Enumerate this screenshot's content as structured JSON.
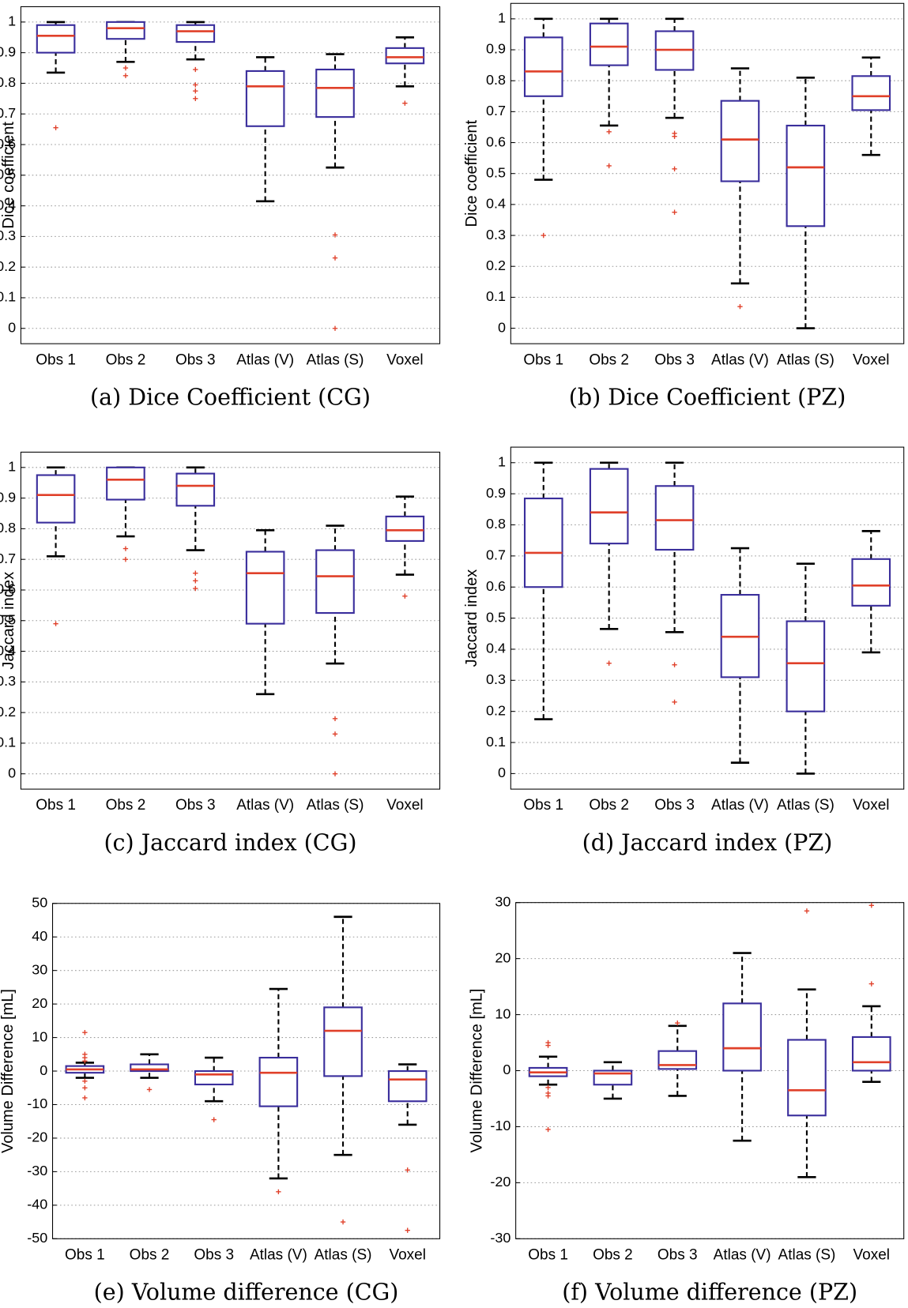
{
  "chart_data": [
    {
      "type": "box",
      "title": "(a) Dice Coefficient (CG)",
      "ylabel": "Dice coefficient",
      "categories": [
        "Obs 1",
        "Obs 2",
        "Obs 3",
        "Atlas (V)",
        "Atlas (S)",
        "Voxel"
      ],
      "ylim": [
        -0.05,
        1.05
      ],
      "yticks": [
        0,
        0.1,
        0.2,
        0.3,
        0.4,
        0.5,
        0.6,
        0.7,
        0.8,
        0.9,
        1
      ],
      "grid": true,
      "box_color": "#3a2e9c",
      "median_color": "#e0402a",
      "whisker_color": "#000000",
      "outlier_color": "#e0402a",
      "boxes": [
        {
          "whisker_low": 0.835,
          "q1": 0.9,
          "median": 0.955,
          "q3": 0.99,
          "whisker_high": 1.0,
          "outliers": [
            0.655
          ]
        },
        {
          "whisker_low": 0.87,
          "q1": 0.945,
          "median": 0.98,
          "q3": 1.0,
          "whisker_high": 1.0,
          "outliers": [
            0.85,
            0.825
          ]
        },
        {
          "whisker_low": 0.878,
          "q1": 0.935,
          "median": 0.97,
          "q3": 0.99,
          "whisker_high": 1.0,
          "outliers": [
            0.845,
            0.795,
            0.775,
            0.75
          ]
        },
        {
          "whisker_low": 0.415,
          "q1": 0.66,
          "median": 0.79,
          "q3": 0.84,
          "whisker_high": 0.885,
          "outliers": []
        },
        {
          "whisker_low": 0.525,
          "q1": 0.69,
          "median": 0.785,
          "q3": 0.845,
          "whisker_high": 0.895,
          "outliers": [
            0.305,
            0.23,
            0
          ]
        },
        {
          "whisker_low": 0.79,
          "q1": 0.865,
          "median": 0.885,
          "q3": 0.915,
          "whisker_high": 0.95,
          "outliers": [
            0.735
          ]
        }
      ]
    },
    {
      "type": "box",
      "title": "(b) Dice Coefficient (PZ)",
      "ylabel": "Dice coefficient",
      "categories": [
        "Obs 1",
        "Obs 2",
        "Obs 3",
        "Atlas (V)",
        "Atlas (S)",
        "Voxel"
      ],
      "ylim": [
        -0.05,
        1.05
      ],
      "yticks": [
        0,
        0.1,
        0.2,
        0.3,
        0.4,
        0.5,
        0.6,
        0.7,
        0.8,
        0.9,
        1
      ],
      "grid": true,
      "box_color": "#3a2e9c",
      "median_color": "#e0402a",
      "whisker_color": "#000000",
      "outlier_color": "#e0402a",
      "boxes": [
        {
          "whisker_low": 0.48,
          "q1": 0.75,
          "median": 0.83,
          "q3": 0.94,
          "whisker_high": 1.0,
          "outliers": [
            0.3
          ]
        },
        {
          "whisker_low": 0.655,
          "q1": 0.85,
          "median": 0.91,
          "q3": 0.985,
          "whisker_high": 1.0,
          "outliers": [
            0.635,
            0.525
          ]
        },
        {
          "whisker_low": 0.68,
          "q1": 0.835,
          "median": 0.9,
          "q3": 0.96,
          "whisker_high": 1.0,
          "outliers": [
            0.63,
            0.62,
            0.515,
            0.375
          ]
        },
        {
          "whisker_low": 0.145,
          "q1": 0.475,
          "median": 0.61,
          "q3": 0.735,
          "whisker_high": 0.84,
          "outliers": [
            0.07
          ]
        },
        {
          "whisker_low": 0,
          "q1": 0.33,
          "median": 0.52,
          "q3": 0.655,
          "whisker_high": 0.81,
          "outliers": []
        },
        {
          "whisker_low": 0.56,
          "q1": 0.705,
          "median": 0.75,
          "q3": 0.815,
          "whisker_high": 0.875,
          "outliers": []
        }
      ]
    },
    {
      "type": "box",
      "title": "(c) Jaccard index (CG)",
      "ylabel": "Jaccard index",
      "categories": [
        "Obs 1",
        "Obs 2",
        "Obs 3",
        "Atlas (V)",
        "Atlas (S)",
        "Voxel"
      ],
      "ylim": [
        -0.05,
        1.05
      ],
      "yticks": [
        0,
        0.1,
        0.2,
        0.3,
        0.4,
        0.5,
        0.6,
        0.7,
        0.8,
        0.9,
        1
      ],
      "grid": true,
      "box_color": "#3a2e9c",
      "median_color": "#e0402a",
      "whisker_color": "#000000",
      "outlier_color": "#e0402a",
      "boxes": [
        {
          "whisker_low": 0.71,
          "q1": 0.82,
          "median": 0.91,
          "q3": 0.975,
          "whisker_high": 1.0,
          "outliers": [
            0.49
          ]
        },
        {
          "whisker_low": 0.775,
          "q1": 0.895,
          "median": 0.96,
          "q3": 1.0,
          "whisker_high": 1.0,
          "outliers": [
            0.735,
            0.7
          ]
        },
        {
          "whisker_low": 0.73,
          "q1": 0.875,
          "median": 0.94,
          "q3": 0.98,
          "whisker_high": 1.0,
          "outliers": [
            0.655,
            0.63,
            0.605
          ]
        },
        {
          "whisker_low": 0.26,
          "q1": 0.49,
          "median": 0.655,
          "q3": 0.725,
          "whisker_high": 0.795,
          "outliers": []
        },
        {
          "whisker_low": 0.36,
          "q1": 0.525,
          "median": 0.645,
          "q3": 0.73,
          "whisker_high": 0.81,
          "outliers": [
            0.18,
            0.13,
            0
          ]
        },
        {
          "whisker_low": 0.65,
          "q1": 0.76,
          "median": 0.795,
          "q3": 0.84,
          "whisker_high": 0.905,
          "outliers": [
            0.58
          ]
        }
      ]
    },
    {
      "type": "box",
      "title": "(d) Jaccard index (PZ)",
      "ylabel": "Jaccard index",
      "categories": [
        "Obs 1",
        "Obs 2",
        "Obs 3",
        "Atlas (V)",
        "Atlas (S)",
        "Voxel"
      ],
      "ylim": [
        -0.05,
        1.05
      ],
      "yticks": [
        0,
        0.1,
        0.2,
        0.3,
        0.4,
        0.5,
        0.6,
        0.7,
        0.8,
        0.9,
        1
      ],
      "grid": true,
      "box_color": "#3a2e9c",
      "median_color": "#e0402a",
      "whisker_color": "#000000",
      "outlier_color": "#e0402a",
      "boxes": [
        {
          "whisker_low": 0.175,
          "q1": 0.6,
          "median": 0.71,
          "q3": 0.885,
          "whisker_high": 1.0,
          "outliers": []
        },
        {
          "whisker_low": 0.465,
          "q1": 0.74,
          "median": 0.84,
          "q3": 0.98,
          "whisker_high": 1.0,
          "outliers": [
            0.355
          ]
        },
        {
          "whisker_low": 0.455,
          "q1": 0.72,
          "median": 0.815,
          "q3": 0.925,
          "whisker_high": 1.0,
          "outliers": [
            0.35,
            0.23
          ]
        },
        {
          "whisker_low": 0.035,
          "q1": 0.31,
          "median": 0.44,
          "q3": 0.575,
          "whisker_high": 0.725,
          "outliers": []
        },
        {
          "whisker_low": 0,
          "q1": 0.2,
          "median": 0.355,
          "q3": 0.49,
          "whisker_high": 0.675,
          "outliers": []
        },
        {
          "whisker_low": 0.39,
          "q1": 0.54,
          "median": 0.605,
          "q3": 0.69,
          "whisker_high": 0.78,
          "outliers": []
        }
      ]
    },
    {
      "type": "box",
      "title": "(e) Volume difference (CG)",
      "ylabel": "Volume Difference [mL]",
      "categories": [
        "Obs 1",
        "Obs 2",
        "Obs 3",
        "Atlas (V)",
        "Atlas (S)",
        "Voxel"
      ],
      "ylim": [
        -50,
        50
      ],
      "yticks": [
        -50,
        -40,
        -30,
        -20,
        -10,
        0,
        10,
        20,
        30,
        40,
        50
      ],
      "grid": true,
      "box_color": "#3a2e9c",
      "median_color": "#e0402a",
      "whisker_color": "#000000",
      "outlier_color": "#e0402a",
      "boxes": [
        {
          "whisker_low": -2,
          "q1": -0.5,
          "median": 0.5,
          "q3": 1.5,
          "whisker_high": 2.5,
          "outliers": [
            11.5,
            5,
            4,
            3,
            -3,
            -5,
            -8
          ]
        },
        {
          "whisker_low": -2,
          "q1": 0,
          "median": 0.5,
          "q3": 2,
          "whisker_high": 5,
          "outliers": [
            -5.5
          ]
        },
        {
          "whisker_low": -9,
          "q1": -4,
          "median": -1,
          "q3": 0,
          "whisker_high": 4,
          "outliers": [
            -14.5
          ]
        },
        {
          "whisker_low": -32,
          "q1": -10.5,
          "median": -0.5,
          "q3": 4,
          "whisker_high": 24.5,
          "outliers": [
            -36
          ]
        },
        {
          "whisker_low": -25,
          "q1": -1.5,
          "median": 12,
          "q3": 19,
          "whisker_high": 46,
          "outliers": [
            -45
          ]
        },
        {
          "whisker_low": -16,
          "q1": -9,
          "median": -2.5,
          "q3": 0,
          "whisker_high": 2,
          "outliers": [
            -29.5,
            -47.5
          ]
        }
      ]
    },
    {
      "type": "box",
      "title": "(f) Volume difference (PZ)",
      "ylabel": "Volume Difference [mL]",
      "categories": [
        "Obs 1",
        "Obs 2",
        "Obs 3",
        "Atlas (V)",
        "Atlas (S)",
        "Voxel"
      ],
      "ylim": [
        -30,
        30
      ],
      "yticks": [
        -30,
        -20,
        -10,
        0,
        10,
        20,
        30
      ],
      "grid": true,
      "box_color": "#3a2e9c",
      "median_color": "#e0402a",
      "whisker_color": "#000000",
      "outlier_color": "#e0402a",
      "boxes": [
        {
          "whisker_low": -2.5,
          "q1": -1,
          "median": -0.3,
          "q3": 0.5,
          "whisker_high": 2.5,
          "outliers": [
            5,
            4.5,
            -3,
            -4,
            -4.5,
            -10.5
          ]
        },
        {
          "whisker_low": -5,
          "q1": -2.5,
          "median": -0.5,
          "q3": 0,
          "whisker_high": 1.5,
          "outliers": []
        },
        {
          "whisker_low": -4.5,
          "q1": 0.3,
          "median": 1,
          "q3": 3.5,
          "whisker_high": 8,
          "outliers": [
            8.5
          ]
        },
        {
          "whisker_low": -12.5,
          "q1": 0,
          "median": 4,
          "q3": 12,
          "whisker_high": 21,
          "outliers": []
        },
        {
          "whisker_low": -19,
          "q1": -8,
          "median": -3.5,
          "q3": 5.5,
          "whisker_high": 14.5,
          "outliers": [
            28.5
          ]
        },
        {
          "whisker_low": -2,
          "q1": 0,
          "median": 1.5,
          "q3": 6,
          "whisker_high": 11.5,
          "outliers": [
            15.5,
            29.5
          ]
        }
      ]
    }
  ]
}
